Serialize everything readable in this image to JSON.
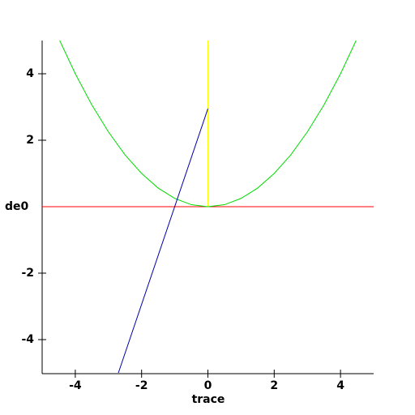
{
  "chart_data": {
    "type": "line",
    "x_label": "trace",
    "y_label": "de0",
    "xlim": [
      -5,
      5
    ],
    "ylim": [
      -5,
      5
    ],
    "xticks": [
      -4,
      -2,
      0,
      2,
      4
    ],
    "yticks": [
      -4,
      -2,
      2,
      4
    ],
    "series": [
      {
        "color": "#ff0000",
        "x": [
          -5,
          5
        ],
        "values": [
          0,
          0
        ]
      },
      {
        "color": "#ffff00",
        "x": [
          0,
          0
        ],
        "values": [
          0,
          5
        ]
      },
      {
        "color": "#00dd00",
        "x": [
          -4.47,
          -4,
          -3.5,
          -3,
          -2.5,
          -2,
          -1.5,
          -1,
          -0.5,
          0,
          0.5,
          1,
          1.5,
          2,
          2.5,
          3,
          3.5,
          4,
          4.47
        ],
        "values": [
          5,
          4,
          3.06,
          2.25,
          1.56,
          1,
          0.56,
          0.25,
          0.06,
          0,
          0.06,
          0.25,
          0.56,
          1,
          1.56,
          2.25,
          3.06,
          4,
          5
        ]
      },
      {
        "color": "#0000aa",
        "x": [
          -2.7,
          0
        ],
        "values": [
          -5,
          2.95
        ]
      }
    ]
  }
}
